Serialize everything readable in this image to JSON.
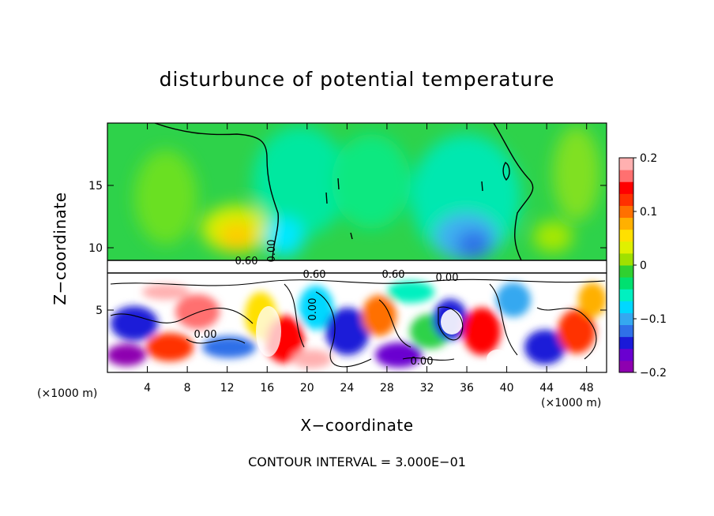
{
  "chart_data": {
    "type": "heatmap",
    "title": "disturbunce of potential temperature",
    "xlabel": "X−coordinate",
    "ylabel": "Z−coordinate",
    "x_unit": "(×1000 m)",
    "y_unit": "(×1000 m)",
    "xlim": [
      0,
      50
    ],
    "ylim": [
      0,
      20
    ],
    "x_ticks": [
      4,
      8,
      12,
      16,
      20,
      24,
      28,
      32,
      36,
      40,
      44,
      48
    ],
    "y_ticks": [
      5,
      10,
      15
    ],
    "colorbar": {
      "range": [
        -0.2,
        0.2
      ],
      "ticks": [
        0.2,
        0.1,
        0,
        -0.1,
        -0.2
      ],
      "tick_labels": [
        "0.2",
        "0.1",
        "0",
        "−0.1",
        "−0.2"
      ],
      "colors": [
        "#8e00b0",
        "#6a00d0",
        "#1a1ad8",
        "#2f70e8",
        "#35a8f0",
        "#00d8ff",
        "#00f0c0",
        "#00e070",
        "#30d030",
        "#a0e000",
        "#e0f000",
        "#ffe000",
        "#ffb000",
        "#ff7000",
        "#ff3000",
        "#ff0000",
        "#ff7070",
        "#ffb0b0"
      ]
    },
    "contour_interval_text": "CONTOUR INTERVAL = 3.000E−01",
    "contour_labels": [
      "0.60",
      "0.00",
      "0.60",
      "0.60",
      "0.00",
      "0.00",
      "0.00",
      "0.00"
    ]
  }
}
